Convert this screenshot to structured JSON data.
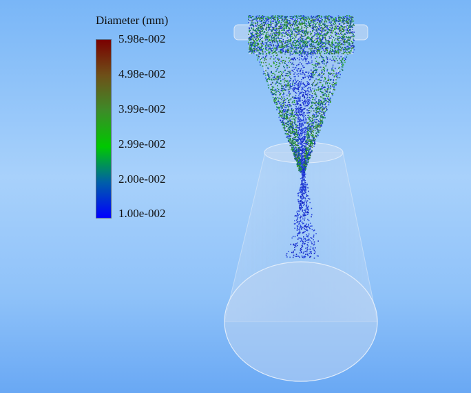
{
  "legend": {
    "title": "Diameter (mm)",
    "tick_labels": [
      "5.98e-002",
      "4.98e-002",
      "3.99e-002",
      "2.99e-002",
      "2.00e-002",
      "1.00e-002"
    ],
    "colormap": [
      "#0000ff",
      "#005fa8",
      "#00c800",
      "#3c8c28",
      "#6e5018",
      "#7a0000"
    ]
  },
  "scene": {
    "particle_colors": [
      "#1a2cc8",
      "#2a4be0",
      "#1f8a3a",
      "#2aa82a",
      "#3d7a2a",
      "#0c6e6e"
    ]
  }
}
